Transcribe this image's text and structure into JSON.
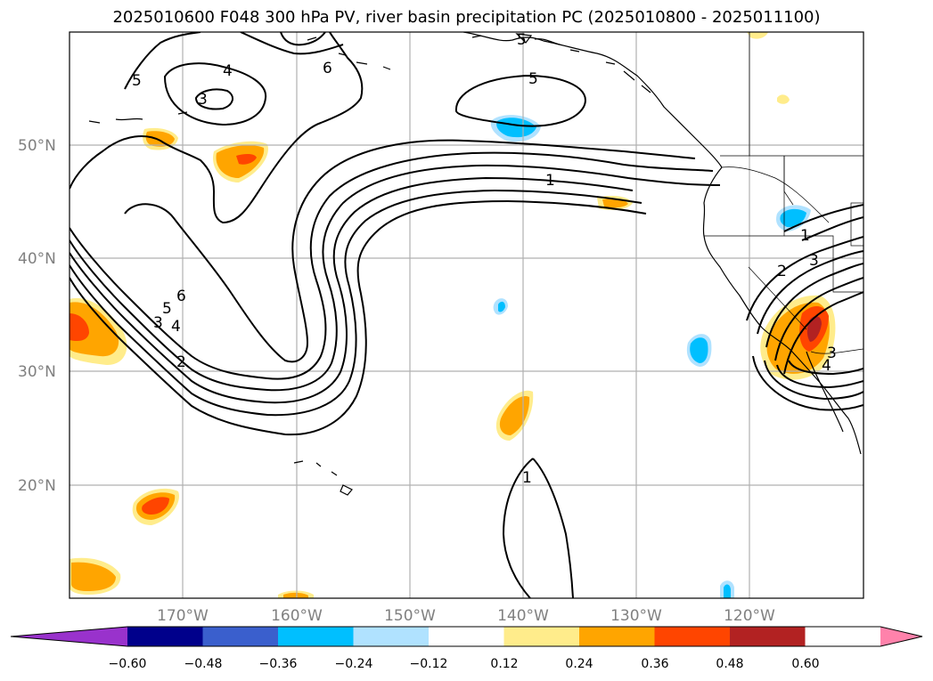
{
  "title": "2025010600 F048 300 hPa PV, river basin precipitation PC (2025010800 - 2025011100)",
  "lat_labels": [
    "50°N",
    "40°N",
    "30°N",
    "20°N"
  ],
  "lon_labels": [
    "170°W",
    "160°W",
    "150°W",
    "140°W",
    "130°W",
    "120°W"
  ],
  "contour_labels": [
    "5",
    "4",
    "3",
    "6",
    "5",
    "5",
    "1",
    "5",
    "4",
    "3",
    "2",
    "6",
    "1",
    "1",
    "3",
    "2",
    "3",
    "4"
  ],
  "colorbar": {
    "ticks": [
      "−0.60",
      "−0.48",
      "−0.36",
      "−0.24",
      "−0.12",
      "0.12",
      "0.24",
      "0.36",
      "0.48",
      "0.60"
    ],
    "colors": [
      "#9932cc",
      "#00008b",
      "#3a5fcd",
      "#00bfff",
      "#b0e2ff",
      "#ffffff",
      "#ffec8b",
      "#ffa500",
      "#ff4500",
      "#b22222",
      "#ff82ab"
    ]
  }
}
